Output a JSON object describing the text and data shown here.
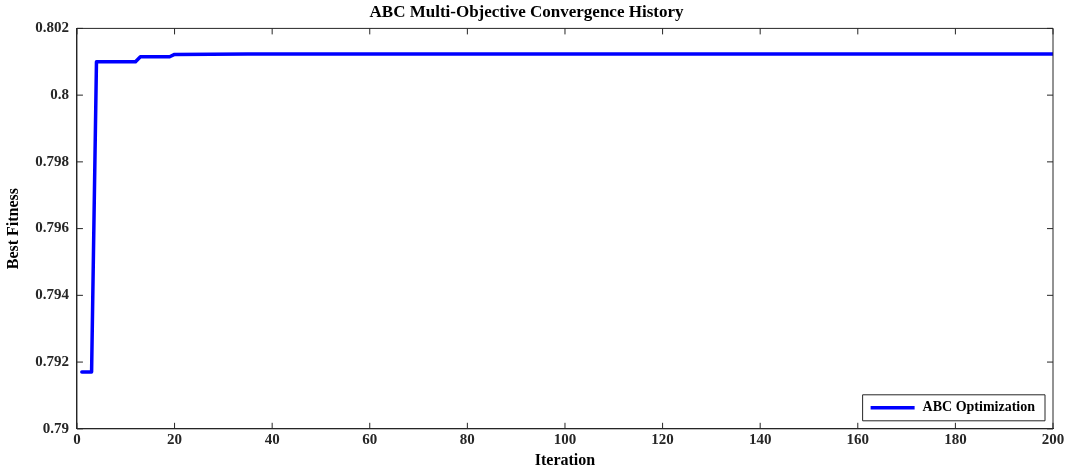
{
  "chart_data": {
    "type": "line",
    "title": "ABC Multi-Objective Convergence History",
    "xlabel": "Iteration",
    "ylabel": "Best Fitness",
    "xlim": [
      0,
      200
    ],
    "xticks": [
      0,
      20,
      40,
      60,
      80,
      100,
      120,
      140,
      160,
      180,
      200
    ],
    "ylim": [
      0.79,
      0.802
    ],
    "yticks": [
      0.79,
      0.792,
      0.794,
      0.796,
      0.798,
      0.8,
      0.802
    ],
    "grid": false,
    "legend": "bottom right",
    "marker": "none",
    "line_style": "solid",
    "series": [
      {
        "name": "ABC Optimization",
        "color": "#0000ff",
        "x": [
          1,
          3,
          4,
          12,
          13,
          19,
          20,
          35,
          200
        ],
        "values": [
          0.7917,
          0.7917,
          0.801,
          0.801,
          0.80115,
          0.80115,
          0.80122,
          0.80123,
          0.80123
        ]
      }
    ]
  }
}
